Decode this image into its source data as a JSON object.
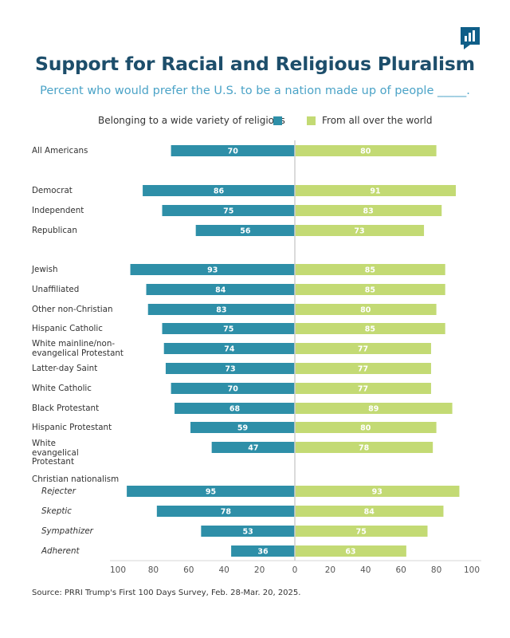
{
  "brand": {
    "icon": "bar-chart-flag-icon",
    "color": "#0f5e88"
  },
  "colors": {
    "religions": "#2e8fa8",
    "world": "#c3da74",
    "title": "#1d4e6b",
    "subtitle": "#4ba3c7"
  },
  "chart_data": {
    "type": "bar",
    "orientation": "horizontal-diverging",
    "title": "Support for Racial and Religious Pluralism",
    "subtitle": "Percent who would prefer the U.S. to be a nation made up of people _____.",
    "legend": {
      "religions_label": "Belonging to a wide variety of religions",
      "world_label": "From all over the world"
    },
    "group_label": "Christian nationalism",
    "x_ticks": [
      "100",
      "80",
      "60",
      "40",
      "20",
      "0",
      "20",
      "40",
      "60",
      "80",
      "100"
    ],
    "xlim": [
      -100,
      100
    ],
    "categories": [
      "All Americans",
      "Democrat",
      "Independent",
      "Republican",
      "Jewish",
      "Unaffiliated",
      "Other non-Christian",
      "Hispanic Catholic",
      "White mainline/non-evangelical Protestant",
      "Latter-day Saint",
      "White Catholic",
      "Black Protestant",
      "Hispanic Protestant",
      "White evangelical Protestant",
      "Rejecter",
      "Skeptic",
      "Sympathizer",
      "Adherent"
    ],
    "series": [
      {
        "name": "Belonging to a wide variety of religions",
        "side": "left",
        "values": [
          70,
          86,
          75,
          56,
          93,
          84,
          83,
          75,
          74,
          73,
          70,
          68,
          59,
          47,
          95,
          78,
          53,
          36
        ]
      },
      {
        "name": "From all over the world",
        "side": "right",
        "values": [
          80,
          91,
          83,
          73,
          85,
          85,
          80,
          85,
          77,
          77,
          77,
          89,
          80,
          78,
          93,
          84,
          75,
          63
        ]
      }
    ],
    "source": "Source: PRRI Trump's First 100 Days Survey, Feb. 28-Mar. 20, 2025."
  }
}
